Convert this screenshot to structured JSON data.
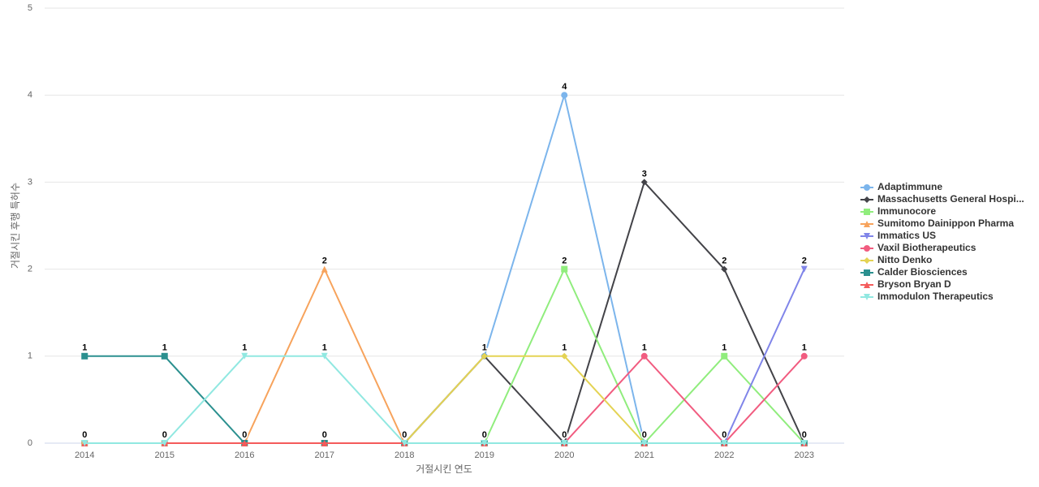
{
  "chart_data": {
    "type": "line",
    "x_label": "거절시킨 연도",
    "y_label": "거절시킨 후행 특허수",
    "categories": [
      "2014",
      "2015",
      "2016",
      "2017",
      "2018",
      "2019",
      "2020",
      "2021",
      "2022",
      "2023"
    ],
    "ylim": [
      0,
      5
    ],
    "yticks": [
      0,
      1,
      2,
      3,
      4,
      5
    ],
    "grid": true,
    "legend": "right",
    "series": [
      {
        "name": "Adaptimmune",
        "color": "#7cb5ec",
        "values": [
          0,
          0,
          0,
          0,
          0,
          1,
          4,
          0,
          0,
          0
        ]
      },
      {
        "name": "Massachusetts General Hospi...",
        "color": "#434348",
        "values": [
          0,
          0,
          0,
          0,
          0,
          1,
          0,
          3,
          2,
          0
        ]
      },
      {
        "name": "Immunocore",
        "color": "#90ed7d",
        "values": [
          0,
          0,
          0,
          0,
          0,
          0,
          2,
          0,
          1,
          0
        ]
      },
      {
        "name": "Sumitomo Dainippon Pharma",
        "color": "#f7a35c",
        "values": [
          0,
          0,
          0,
          2,
          0,
          0,
          0,
          0,
          0,
          0
        ]
      },
      {
        "name": "Immatics US",
        "color": "#8085e9",
        "values": [
          0,
          0,
          0,
          0,
          0,
          0,
          0,
          0,
          0,
          2
        ]
      },
      {
        "name": "Vaxil Biotherapeutics",
        "color": "#f15c80",
        "values": [
          0,
          0,
          0,
          0,
          0,
          0,
          0,
          1,
          0,
          1
        ]
      },
      {
        "name": "Nitto Denko",
        "color": "#e4d354",
        "values": [
          0,
          0,
          0,
          0,
          0,
          1,
          1,
          0,
          0,
          0
        ]
      },
      {
        "name": "Calder Biosciences",
        "color": "#2b908f",
        "values": [
          1,
          1,
          0,
          0,
          0,
          0,
          0,
          0,
          0,
          0
        ]
      },
      {
        "name": "Bryson Bryan D",
        "color": "#f45b5b",
        "values": [
          0,
          0,
          0,
          0,
          0,
          0,
          0,
          0,
          0,
          0
        ]
      },
      {
        "name": "Immodulon Therapeutics",
        "color": "#91e8e1",
        "values": [
          0,
          0,
          1,
          1,
          0,
          0,
          0,
          0,
          0,
          0
        ]
      }
    ]
  }
}
